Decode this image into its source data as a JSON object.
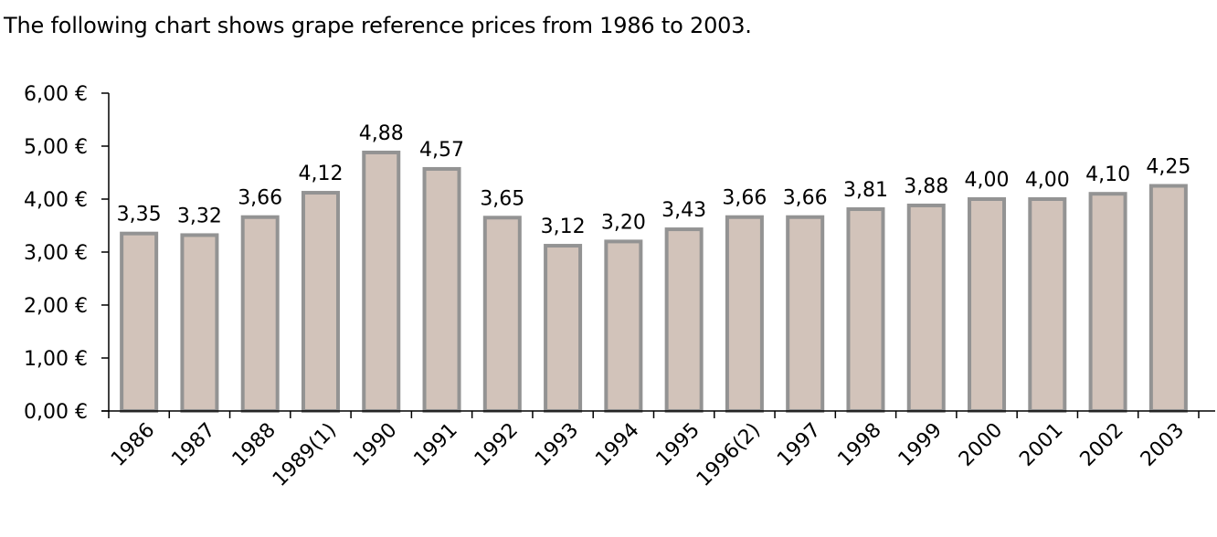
{
  "intro_text": "The following chart shows grape reference prices from 1986 to 2003.",
  "chart_data": {
    "type": "bar",
    "title": "",
    "xlabel": "",
    "ylabel": "",
    "categories": [
      "1986",
      "1987",
      "1988",
      "1989(1)",
      "1990",
      "1991",
      "1992",
      "1993",
      "1994",
      "1995",
      "1996(2)",
      "1997",
      "1998",
      "1999",
      "2000",
      "2001",
      "2002",
      "2003"
    ],
    "values": [
      3.35,
      3.32,
      3.66,
      4.12,
      4.88,
      4.57,
      3.65,
      3.12,
      3.2,
      3.43,
      3.66,
      3.66,
      3.81,
      3.88,
      4.0,
      4.0,
      4.1,
      4.25
    ],
    "data_labels": [
      "3,35",
      "3,32",
      "3,66",
      "4,12",
      "4,88",
      "4,57",
      "3,65",
      "3,12",
      "3,20",
      "3,43",
      "3,66",
      "3,66",
      "3,81",
      "3,88",
      "4,00",
      "4,00",
      "4,10",
      "4,25"
    ],
    "ylim": [
      0,
      6
    ],
    "yticks": [
      0,
      1,
      2,
      3,
      4,
      5,
      6
    ],
    "ytick_labels": [
      "0,00 €",
      "1,00 €",
      "2,00 €",
      "3,00 €",
      "4,00 €",
      "5,00 €",
      "6,00 €"
    ],
    "grid": false,
    "legend": "none",
    "colors": {
      "bar_fill": "#d2c3ba",
      "bar_border": "#939393",
      "axis": "#000000"
    }
  }
}
